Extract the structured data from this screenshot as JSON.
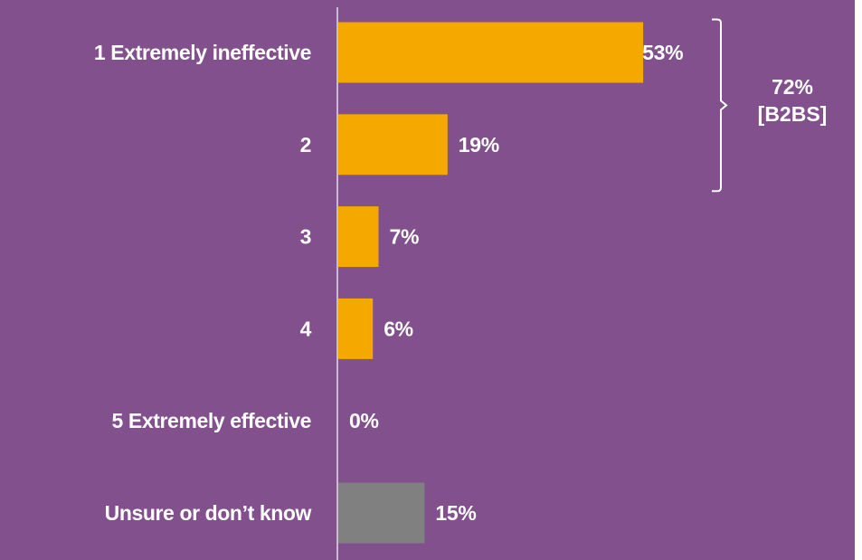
{
  "chart_data": {
    "type": "bar",
    "orientation": "horizontal",
    "title": "",
    "xlabel": "",
    "ylabel": "",
    "categories": [
      "1 Extremely ineffective",
      "2",
      "3",
      "4",
      "5 Extremely effective",
      "Unsure or don’t know"
    ],
    "values": [
      53,
      19,
      7,
      6,
      0,
      15
    ],
    "value_labels": [
      "53%",
      "19%",
      "7%",
      "6%",
      "0%",
      "15%"
    ],
    "bar_colors": [
      "#f5a800",
      "#f5a800",
      "#f5a800",
      "#f5a800",
      "#f5a800",
      "#808080"
    ],
    "xlim": [
      0,
      60
    ],
    "grid": false,
    "legend": "none",
    "background_color": "#81508d",
    "axis_color": "#e8dcec",
    "annotation": {
      "groups": [
        "1 Extremely ineffective",
        "2"
      ],
      "line1": "72%",
      "line2": "[B2BS]"
    }
  }
}
